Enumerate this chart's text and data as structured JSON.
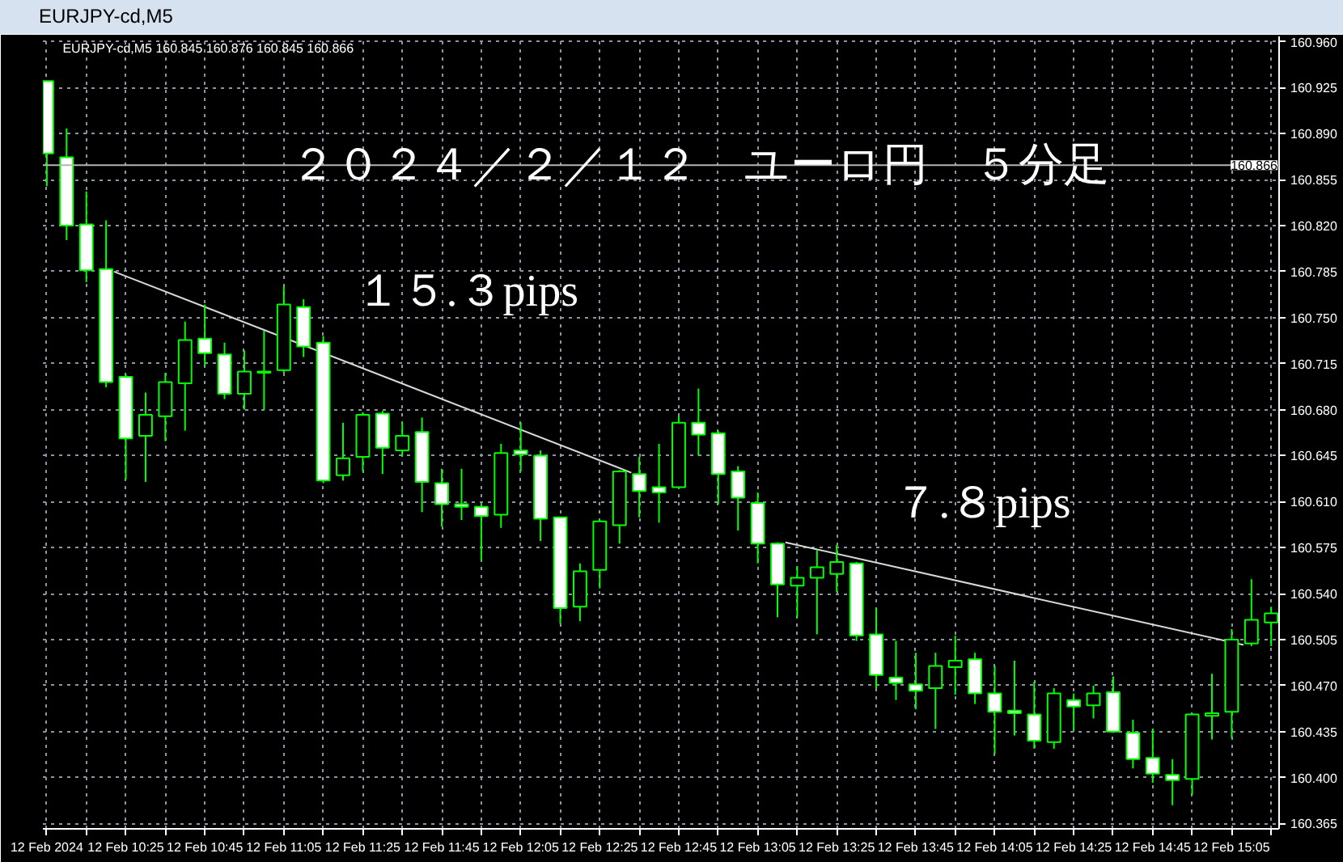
{
  "chart_data": {
    "type": "candlestick",
    "title": "２０２４／２／１２　ユーロ円　５分足",
    "subtitle": "EURJPY-cd,M5 160.845 160.876 160.845 160.866",
    "annotations": [
      "EURJPY-cd,M5",
      "１５.３pips",
      "７.８pips"
    ],
    "x": [
      "2024-02-12T10:05",
      "2024-02-12T10:10",
      "2024-02-12T10:15",
      "2024-02-12T10:20",
      "2024-02-12T10:25",
      "2024-02-12T10:30",
      "2024-02-12T10:35",
      "2024-02-12T10:40",
      "2024-02-12T10:45",
      "2024-02-12T10:50",
      "2024-02-12T10:55",
      "2024-02-12T11:00",
      "2024-02-12T11:05",
      "2024-02-12T11:10",
      "2024-02-12T11:15",
      "2024-02-12T11:20",
      "2024-02-12T11:25",
      "2024-02-12T11:30",
      "2024-02-12T11:35",
      "2024-02-12T11:40",
      "2024-02-12T11:45",
      "2024-02-12T11:50",
      "2024-02-12T11:55",
      "2024-02-12T12:00",
      "2024-02-12T12:05",
      "2024-02-12T12:10",
      "2024-02-12T12:15",
      "2024-02-12T12:20",
      "2024-02-12T12:25",
      "2024-02-12T12:30",
      "2024-02-12T12:35",
      "2024-02-12T12:40",
      "2024-02-12T12:45",
      "2024-02-12T12:50",
      "2024-02-12T12:55",
      "2024-02-12T13:00",
      "2024-02-12T13:05",
      "2024-02-12T13:10",
      "2024-02-12T13:15",
      "2024-02-12T13:20",
      "2024-02-12T13:25",
      "2024-02-12T13:30",
      "2024-02-12T13:35",
      "2024-02-12T13:40",
      "2024-02-12T13:45",
      "2024-02-12T13:50",
      "2024-02-12T13:55",
      "2024-02-12T14:00",
      "2024-02-12T14:05",
      "2024-02-12T14:10",
      "2024-02-12T14:15",
      "2024-02-12T14:20",
      "2024-02-12T14:25",
      "2024-02-12T14:30",
      "2024-02-12T14:35",
      "2024-02-12T14:40",
      "2024-02-12T14:45",
      "2024-02-12T14:50",
      "2024-02-12T14:55",
      "2024-02-12T15:00",
      "2024-02-12T15:05",
      "2024-02-12T15:10",
      "2024-02-12T15:15"
    ],
    "ohlc": [
      [
        160.93,
        160.93,
        160.85,
        160.875
      ],
      [
        160.872,
        160.894,
        160.809,
        160.82
      ],
      [
        160.821,
        160.846,
        160.777,
        160.786
      ],
      [
        160.787,
        160.824,
        160.697,
        160.701
      ],
      [
        160.705,
        160.707,
        160.627,
        160.658
      ],
      [
        160.66,
        160.693,
        160.625,
        160.676
      ],
      [
        160.675,
        160.708,
        160.656,
        160.701
      ],
      [
        160.7,
        160.747,
        160.664,
        160.733
      ],
      [
        160.734,
        160.76,
        160.713,
        160.723
      ],
      [
        160.722,
        160.731,
        160.688,
        160.692
      ],
      [
        160.692,
        160.725,
        160.68,
        160.709
      ],
      [
        160.708,
        160.74,
        160.68,
        160.709
      ],
      [
        160.71,
        160.774,
        160.708,
        160.76
      ],
      [
        160.758,
        160.764,
        160.72,
        160.728
      ],
      [
        160.731,
        160.736,
        160.624,
        160.626
      ],
      [
        160.63,
        160.67,
        160.626,
        160.643
      ],
      [
        160.644,
        160.678,
        160.633,
        160.676
      ],
      [
        160.677,
        160.679,
        160.631,
        160.651
      ],
      [
        160.649,
        160.67,
        160.645,
        160.66
      ],
      [
        160.663,
        160.674,
        160.602,
        160.625
      ],
      [
        160.624,
        160.635,
        160.591,
        160.608
      ],
      [
        160.608,
        160.635,
        160.596,
        160.606
      ],
      [
        160.606,
        160.608,
        160.565,
        160.599
      ],
      [
        160.6,
        160.654,
        160.59,
        160.647
      ],
      [
        160.649,
        160.67,
        160.633,
        160.646
      ],
      [
        160.645,
        160.649,
        160.58,
        160.597
      ],
      [
        160.598,
        160.598,
        160.517,
        160.529
      ],
      [
        160.53,
        160.563,
        160.519,
        160.557
      ],
      [
        160.558,
        160.596,
        160.544,
        160.595
      ],
      [
        160.592,
        160.634,
        160.578,
        160.633
      ],
      [
        160.631,
        160.644,
        160.598,
        160.618
      ],
      [
        160.621,
        160.654,
        160.594,
        160.617
      ],
      [
        160.621,
        160.675,
        160.62,
        160.67
      ],
      [
        160.67,
        160.696,
        160.645,
        160.661
      ],
      [
        160.662,
        160.664,
        160.608,
        160.631
      ],
      [
        160.633,
        160.637,
        160.588,
        160.613
      ],
      [
        160.609,
        160.617,
        160.563,
        160.578
      ],
      [
        160.578,
        160.579,
        160.522,
        160.547
      ],
      [
        160.546,
        160.561,
        160.522,
        160.552
      ],
      [
        160.552,
        160.573,
        160.509,
        160.56
      ],
      [
        160.555,
        160.577,
        160.541,
        160.564
      ],
      [
        160.563,
        160.564,
        160.504,
        160.508
      ],
      [
        160.509,
        160.529,
        160.468,
        160.478
      ],
      [
        160.476,
        160.504,
        160.459,
        160.472
      ],
      [
        160.471,
        160.495,
        160.452,
        160.466
      ],
      [
        160.468,
        160.495,
        160.437,
        160.485
      ],
      [
        160.484,
        160.508,
        160.463,
        160.489
      ],
      [
        160.49,
        160.495,
        160.456,
        160.464
      ],
      [
        160.464,
        160.485,
        160.418,
        160.45
      ],
      [
        160.451,
        160.489,
        160.432,
        160.449
      ],
      [
        160.448,
        160.473,
        160.422,
        160.428
      ],
      [
        160.427,
        160.468,
        160.422,
        160.464
      ],
      [
        160.459,
        160.464,
        160.436,
        160.454
      ],
      [
        160.455,
        160.47,
        160.445,
        160.464
      ],
      [
        160.465,
        160.477,
        160.434,
        160.435
      ],
      [
        160.434,
        160.444,
        160.407,
        160.414
      ],
      [
        160.415,
        160.437,
        160.396,
        160.403
      ],
      [
        160.402,
        160.414,
        160.379,
        160.398
      ],
      [
        160.399,
        160.449,
        160.387,
        160.448
      ],
      [
        160.447,
        160.479,
        160.429,
        160.449
      ],
      [
        160.45,
        160.513,
        160.43,
        160.505
      ],
      [
        160.502,
        160.551,
        160.5,
        160.52
      ],
      [
        160.518,
        160.53,
        160.5,
        160.525
      ]
    ],
    "color": "#00ff00",
    "colors": [
      "#ffffff",
      "#ffffff",
      "#ffffff",
      "#ffffff",
      "#ffffff",
      "#000000",
      "#000000",
      "#000000",
      "#ffffff",
      "#ffffff",
      "#000000",
      "#000000",
      "#000000",
      "#ffffff",
      "#ffffff",
      "#000000",
      "#000000",
      "#ffffff",
      "#000000",
      "#ffffff",
      "#ffffff",
      "#ffffff",
      "#ffffff",
      "#000000",
      "#ffffff",
      "#ffffff",
      "#ffffff",
      "#000000",
      "#000000",
      "#000000",
      "#ffffff",
      "#ffffff",
      "#000000",
      "#ffffff",
      "#ffffff",
      "#ffffff",
      "#ffffff",
      "#ffffff",
      "#000000",
      "#000000",
      "#000000",
      "#ffffff",
      "#ffffff",
      "#ffffff",
      "#ffffff",
      "#000000",
      "#000000",
      "#ffffff",
      "#ffffff",
      "#ffffff",
      "#ffffff",
      "#000000",
      "#ffffff",
      "#000000",
      "#ffffff",
      "#ffffff",
      "#ffffff",
      "#ffffff",
      "#000000",
      "#000000",
      "#000000",
      "#000000",
      "#000000"
    ],
    "series": [
      {
        "type": "line",
        "x": [
          "2024-02-12T10:22",
          "2024-02-12T12:33"
        ],
        "values": [
          160.785,
          160.632
        ],
        "color": "#d8d8d8"
      },
      {
        "type": "line",
        "x": [
          "2024-02-12T13:12",
          "2024-02-12T15:08"
        ],
        "values": [
          160.579,
          160.501
        ],
        "color": "#d8d8d8"
      }
    ],
    "ref_lines": [
      {
        "axis": "y",
        "value": 160.866,
        "label": "160.866",
        "color": "#b4b4b4"
      }
    ],
    "xlim": [
      "2024-02-12T10:04",
      "2024-02-12T15:17"
    ],
    "xticks": [
      {
        "value": "2024-02-12T10:05",
        "label": "12 Feb 2024"
      },
      {
        "value": "2024-02-12T10:15",
        "label": null
      },
      {
        "value": "2024-02-12T10:25",
        "label": "12 Feb 10:25"
      },
      {
        "value": "2024-02-12T10:35",
        "label": null
      },
      {
        "value": "2024-02-12T10:45",
        "label": "12 Feb 10:45"
      },
      {
        "value": "2024-02-12T10:55",
        "label": null
      },
      {
        "value": "2024-02-12T11:05",
        "label": "12 Feb 11:05"
      },
      {
        "value": "2024-02-12T11:15",
        "label": null
      },
      {
        "value": "2024-02-12T11:25",
        "label": "12 Feb 11:25"
      },
      {
        "value": "2024-02-12T11:35",
        "label": null
      },
      {
        "value": "2024-02-12T11:45",
        "label": "12 Feb 11:45"
      },
      {
        "value": "2024-02-12T11:55",
        "label": null
      },
      {
        "value": "2024-02-12T12:05",
        "label": "12 Feb 12:05"
      },
      {
        "value": "2024-02-12T12:15",
        "label": null
      },
      {
        "value": "2024-02-12T12:25",
        "label": "12 Feb 12:25"
      },
      {
        "value": "2024-02-12T12:35",
        "label": null
      },
      {
        "value": "2024-02-12T12:45",
        "label": "12 Feb 12:45"
      },
      {
        "value": "2024-02-12T12:55",
        "label": null
      },
      {
        "value": "2024-02-12T13:05",
        "label": "12 Feb 13:05"
      },
      {
        "value": "2024-02-12T13:15",
        "label": null
      },
      {
        "value": "2024-02-12T13:25",
        "label": "12 Feb 13:25"
      },
      {
        "value": "2024-02-12T13:35",
        "label": null
      },
      {
        "value": "2024-02-12T13:45",
        "label": "12 Feb 13:45"
      },
      {
        "value": "2024-02-12T13:55",
        "label": null
      },
      {
        "value": "2024-02-12T14:05",
        "label": "12 Feb 14:05"
      },
      {
        "value": "2024-02-12T14:15",
        "label": null
      },
      {
        "value": "2024-02-12T14:25",
        "label": "12 Feb 14:25"
      },
      {
        "value": "2024-02-12T14:35",
        "label": null
      },
      {
        "value": "2024-02-12T14:45",
        "label": "12 Feb 14:45"
      },
      {
        "value": "2024-02-12T14:55",
        "label": null
      },
      {
        "value": "2024-02-12T15:05",
        "label": "12 Feb 15:05"
      },
      {
        "value": "2024-02-12T15:15",
        "label": null
      }
    ],
    "ylim": [
      160.361,
      160.964
    ],
    "yticks": [
      160.365,
      {
        "value": 160.4,
        "label": "160.400"
      },
      160.435,
      {
        "value": 160.47,
        "label": "160.470"
      },
      160.505,
      {
        "value": 160.54,
        "label": "160.540"
      },
      160.575,
      {
        "value": 160.61,
        "label": "160.610"
      },
      160.645,
      {
        "value": 160.68,
        "label": "160.680"
      },
      160.715,
      {
        "value": 160.75,
        "label": "160.750"
      },
      160.785,
      {
        "value": 160.82,
        "label": "160.820"
      },
      160.855,
      {
        "value": 160.89,
        "label": "160.890"
      },
      160.925,
      {
        "value": 160.96,
        "label": "160.960"
      }
    ],
    "grid": true
  }
}
